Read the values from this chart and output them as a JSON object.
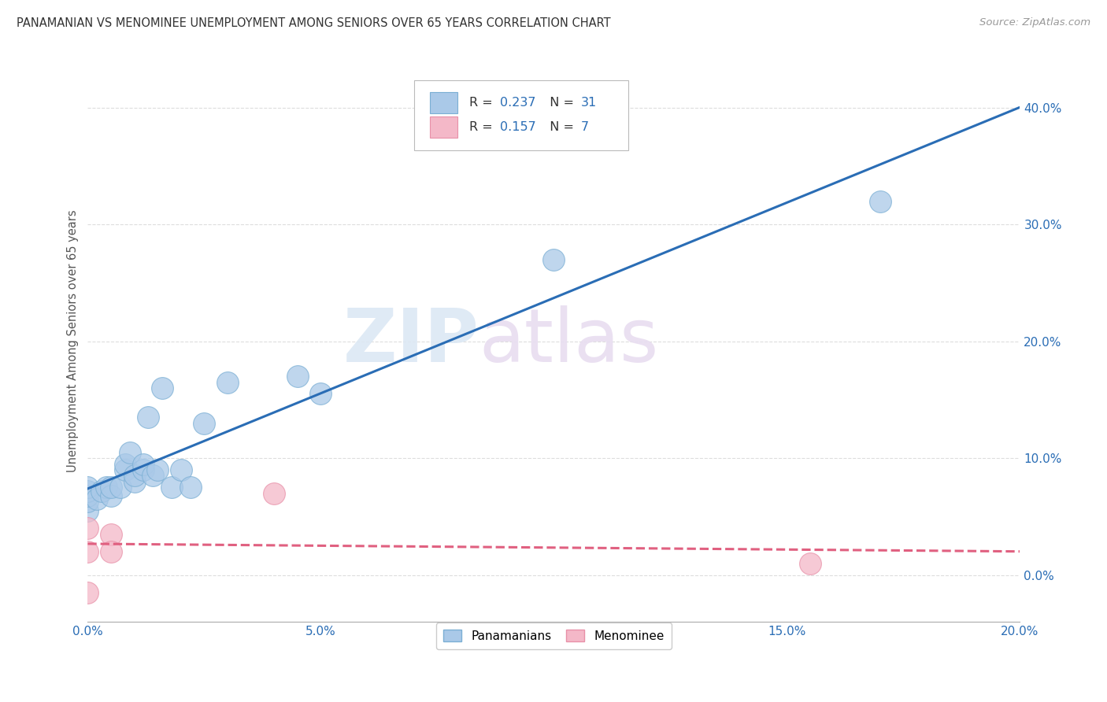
{
  "title": "PANAMANIAN VS MENOMINEE UNEMPLOYMENT AMONG SENIORS OVER 65 YEARS CORRELATION CHART",
  "source": "Source: ZipAtlas.com",
  "ylabel": "Unemployment Among Seniors over 65 years",
  "xlim": [
    0.0,
    0.2
  ],
  "ylim": [
    -0.04,
    0.44
  ],
  "xticks": [
    0.0,
    0.05,
    0.1,
    0.15,
    0.2
  ],
  "xtick_labels": [
    "0.0%",
    "5.0%",
    "10.0%",
    "15.0%",
    "20.0%"
  ],
  "yticks": [
    0.0,
    0.1,
    0.2,
    0.3,
    0.4
  ],
  "ytick_labels": [
    "0.0%",
    "10.0%",
    "20.0%",
    "30.0%",
    "40.0%"
  ],
  "panamanian_x": [
    0.0,
    0.0,
    0.0,
    0.0,
    0.0,
    0.002,
    0.003,
    0.004,
    0.005,
    0.005,
    0.007,
    0.008,
    0.008,
    0.009,
    0.01,
    0.01,
    0.012,
    0.012,
    0.013,
    0.014,
    0.015,
    0.016,
    0.018,
    0.02,
    0.022,
    0.025,
    0.03,
    0.045,
    0.05,
    0.1,
    0.17
  ],
  "panamanian_y": [
    0.055,
    0.063,
    0.068,
    0.072,
    0.075,
    0.065,
    0.072,
    0.075,
    0.068,
    0.075,
    0.075,
    0.09,
    0.095,
    0.105,
    0.08,
    0.085,
    0.09,
    0.095,
    0.135,
    0.085,
    0.09,
    0.16,
    0.075,
    0.09,
    0.075,
    0.13,
    0.165,
    0.17,
    0.155,
    0.27,
    0.32
  ],
  "menominee_x": [
    0.0,
    0.0,
    0.0,
    0.005,
    0.005,
    0.04,
    0.155
  ],
  "menominee_y": [
    0.04,
    0.02,
    -0.015,
    0.035,
    0.02,
    0.07,
    0.01
  ],
  "pan_R": 0.237,
  "pan_N": 31,
  "men_R": 0.157,
  "men_N": 7,
  "pan_color": "#aac9e8",
  "pan_edge_color": "#7bafd4",
  "pan_line_color": "#2a6db5",
  "men_color": "#f4b8c8",
  "men_edge_color": "#e890a8",
  "men_line_color": "#e06080",
  "text_blue": "#2a6db5",
  "background_color": "#ffffff",
  "watermark_zip": "ZIP",
  "watermark_atlas": "atlas",
  "grid_color": "#dddddd"
}
